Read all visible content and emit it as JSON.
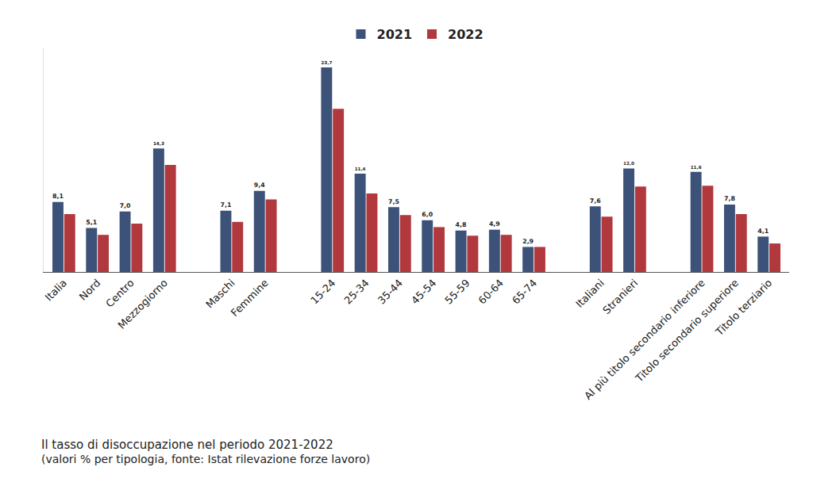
{
  "chart_data": {
    "type": "bar",
    "title": "Il tasso di disoccupazione nel periodo 2021-2022",
    "subtitle": "(valori % per tipologia, fonte: Istat rilevazione forze lavoro)",
    "categories": [
      "Italia",
      "Nord",
      "Centro",
      "Mezzogiorno",
      null,
      "Maschi",
      "Femmine",
      null,
      "15-24",
      "25-34",
      "35-44",
      "45-54",
      "55-59",
      "60-64",
      "65-74",
      null,
      "Italiani",
      "Stranieri",
      null,
      "Al più titolo secondario inferiore",
      "Titolo secondario superiore",
      "Titolo terziario"
    ],
    "series": [
      {
        "name": "2021",
        "color": "#3d5278",
        "values": [
          8.1,
          5.1,
          7.0,
          14.3,
          null,
          7.1,
          9.4,
          null,
          23.7,
          11.4,
          7.5,
          6.0,
          4.8,
          4.9,
          2.9,
          null,
          7.6,
          12.0,
          null,
          11.6,
          7.8,
          4.1
        ],
        "value_labels": [
          "8,1",
          "5,1",
          "7,0",
          "14,3",
          null,
          "7,1",
          "9,4",
          null,
          "23,7",
          "11,4",
          "7,5",
          "6,0",
          "4,8",
          "4,9",
          "2,9",
          null,
          "7,6",
          "12,0",
          null,
          "11,6",
          "7,8",
          "4,1"
        ],
        "data_labels": true
      },
      {
        "name": "2022",
        "color": "#b1383d",
        "values": [
          6.7,
          4.3,
          5.6,
          12.4,
          null,
          5.8,
          8.4,
          null,
          18.9,
          9.1,
          6.6,
          5.2,
          4.2,
          4.3,
          2.9,
          null,
          6.4,
          9.9,
          null,
          10.0,
          6.7,
          3.3
        ],
        "data_labels": false
      }
    ],
    "ylim": [
      0,
      26
    ],
    "tick_labels": "x",
    "grid": false,
    "legend": "top"
  }
}
